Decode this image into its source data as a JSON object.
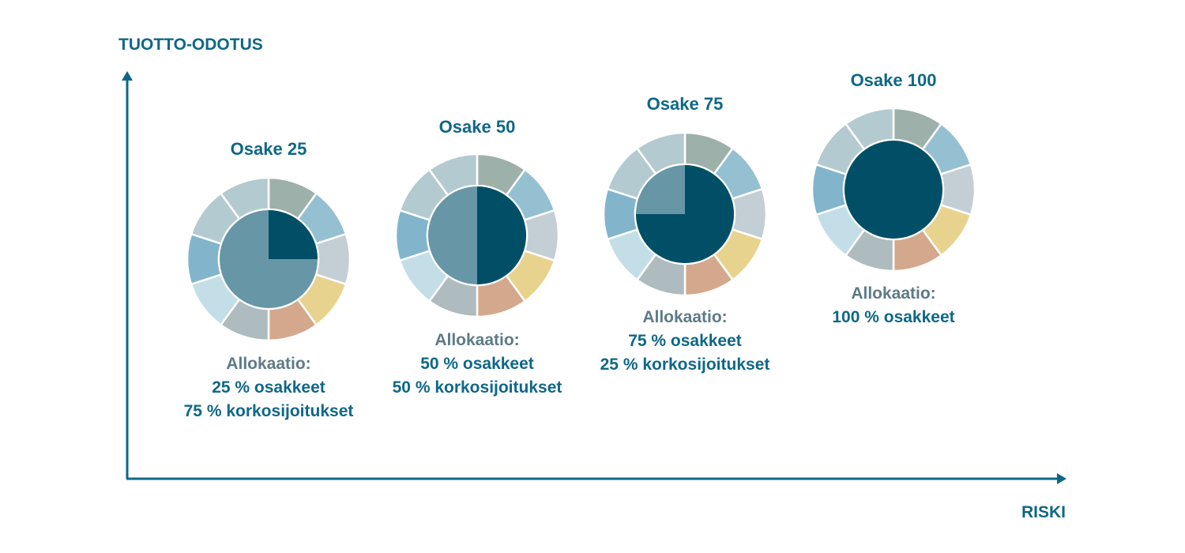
{
  "chart_data": {
    "type": "pie",
    "y_axis_label": "TUOTTO-ODOTUS",
    "x_axis_label": "RISKI",
    "allocation_heading": "Allokaatio:",
    "outer_ring_segments": 10,
    "outer_ring_colors": [
      "#9eb0aa",
      "#95c0d1",
      "#c3ced5",
      "#e8d38e",
      "#d4a88c",
      "#aebbbf",
      "#c4dee8",
      "#82b5cb",
      "#b4cad1",
      "#b4cad1"
    ],
    "colors": {
      "equity": "#014f66",
      "fixed_income": "#6796a6",
      "axis": "#0f6787"
    },
    "portfolios": [
      {
        "name": "Osake 25",
        "equity_pct": 25,
        "fixed_income_pct": 75,
        "lines": [
          "25 % osakkeet",
          "75 % korkosijoitukset"
        ]
      },
      {
        "name": "Osake 50",
        "equity_pct": 50,
        "fixed_income_pct": 50,
        "lines": [
          "50 % osakkeet",
          "50 % korkosijoitukset"
        ]
      },
      {
        "name": "Osake 75",
        "equity_pct": 75,
        "fixed_income_pct": 25,
        "lines": [
          "75 % osakkeet",
          "25 % korkosijoitukset"
        ]
      },
      {
        "name": "Osake 100",
        "equity_pct": 100,
        "fixed_income_pct": 0,
        "lines": [
          "100 % osakkeet"
        ]
      }
    ]
  }
}
